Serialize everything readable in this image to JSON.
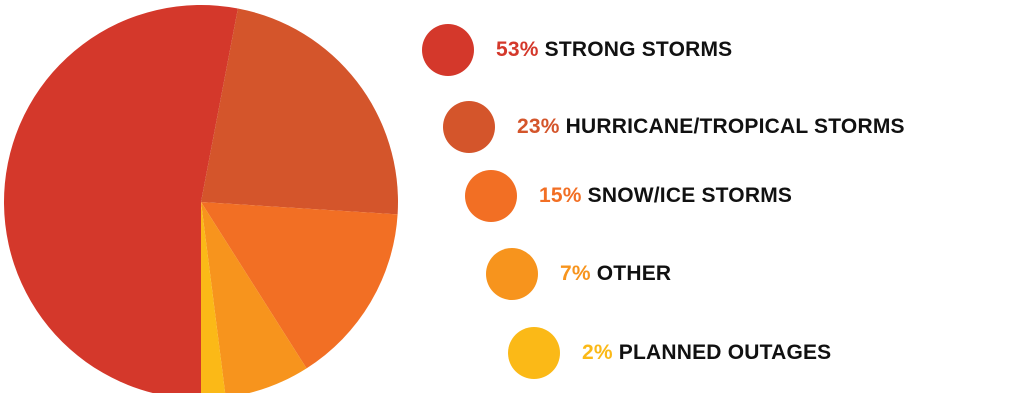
{
  "chart_data": {
    "type": "pie",
    "slices": [
      {
        "label": "STRONG STORMS",
        "percent_label": "53%",
        "value": 53,
        "color": "#d4382b"
      },
      {
        "label": "HURRICANE/TROPICAL STORMS",
        "percent_label": "23%",
        "value": 23,
        "color": "#d4552b"
      },
      {
        "label": "SNOW/ICE STORMS",
        "percent_label": "15%",
        "value": 15,
        "color": "#f26f24"
      },
      {
        "label": "OTHER",
        "percent_label": "7%",
        "value": 7,
        "color": "#f7941d"
      },
      {
        "label": "PLANNED OUTAGES",
        "percent_label": "2%",
        "value": 2,
        "color": "#fbb917"
      }
    ],
    "legend_placement": "right"
  }
}
